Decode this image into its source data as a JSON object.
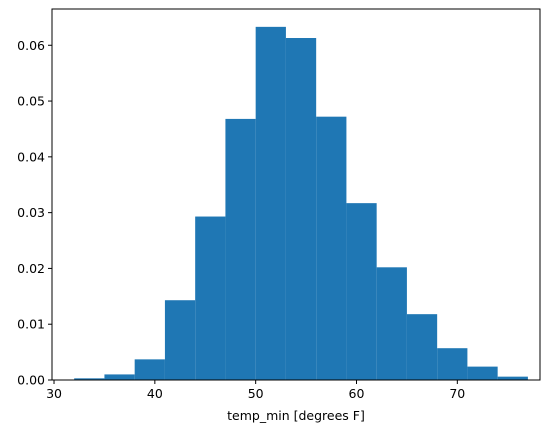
{
  "chart_data": {
    "type": "bar",
    "style": "histogram",
    "title": "",
    "xlabel": "temp_min [degrees F]",
    "ylabel": "",
    "bin_edges": [
      32,
      35,
      38,
      41,
      44,
      47,
      50,
      53,
      56,
      59,
      62,
      65,
      68,
      71,
      74,
      77
    ],
    "values": [
      0.0003,
      0.001,
      0.0037,
      0.0143,
      0.0293,
      0.0468,
      0.0633,
      0.0613,
      0.0472,
      0.0317,
      0.0202,
      0.0118,
      0.0057,
      0.0024,
      0.0006
    ],
    "xlim": [
      29.8,
      78.2
    ],
    "ylim": [
      0,
      0.0665
    ],
    "xticks": [
      30,
      40,
      50,
      60,
      70
    ],
    "yticks": [
      0.0,
      0.01,
      0.02,
      0.03,
      0.04,
      0.05,
      0.06
    ],
    "xtick_labels": [
      "30",
      "40",
      "50",
      "60",
      "70"
    ],
    "ytick_labels": [
      "0.00",
      "0.01",
      "0.02",
      "0.03",
      "0.04",
      "0.05",
      "0.06"
    ],
    "bar_color": "#1f77b4",
    "grid": false,
    "legend": "none"
  }
}
